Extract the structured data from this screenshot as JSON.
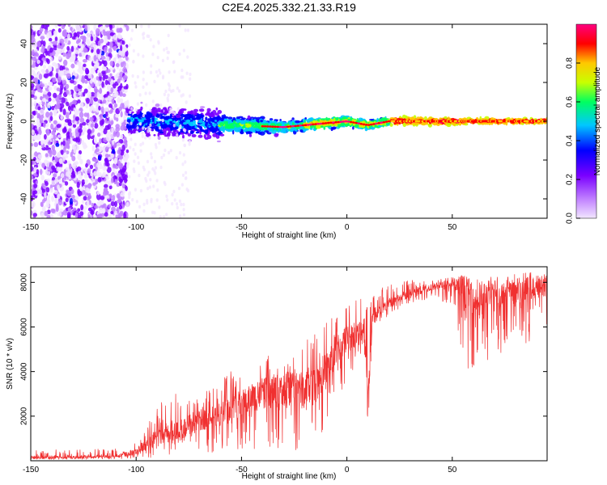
{
  "title": "C2E4.2025.332.21.33.R19",
  "chart_data": [
    {
      "type": "heatmap",
      "title": "C2E4.2025.332.21.33.R19",
      "xlabel": "Height of straight line (km)",
      "ylabel": "Frequency (Hz)",
      "xlim": [
        -150,
        95
      ],
      "ylim": [
        -50,
        50
      ],
      "xticks": [
        -150,
        -100,
        -50,
        0,
        50
      ],
      "yticks": [
        -40,
        -20,
        0,
        20,
        40
      ],
      "colorbar": {
        "label": "Normalized spectral amplitude",
        "range": [
          0,
          1
        ],
        "ticks": [
          "0.0",
          "0.2",
          "0.4",
          "0.6",
          "0.8"
        ],
        "colors": [
          "#f2e6ff",
          "#c080ff",
          "#7a00ff",
          "#0000ff",
          "#00c8ff",
          "#00ff60",
          "#c8ff00",
          "#ffc800",
          "#ff0000",
          "#ff0080"
        ]
      },
      "regions": [
        {
          "x": [
            -150,
            -104
          ],
          "freq_spread": [
            -50,
            50
          ],
          "amplitude": [
            0.05,
            0.3
          ]
        },
        {
          "x": [
            -104,
            -60
          ],
          "freq_spread": [
            -10,
            10
          ],
          "amplitude": [
            0.1,
            0.5
          ]
        },
        {
          "x": [
            -60,
            -20
          ],
          "freq_spread": [
            -6,
            6
          ],
          "amplitude": [
            0.2,
            0.7
          ]
        },
        {
          "x": [
            -20,
            20
          ],
          "freq_spread": [
            -4,
            4
          ],
          "amplitude": [
            0.3,
            0.9
          ]
        },
        {
          "x": [
            20,
            95
          ],
          "freq_spread": [
            -3,
            3
          ],
          "amplitude": [
            0.6,
            1.0
          ]
        }
      ],
      "ridge_freq": [
        {
          "x": -100,
          "y": 0
        },
        {
          "x": -30,
          "y": -3
        },
        {
          "x": -10,
          "y": -1
        },
        {
          "x": 0,
          "y": 0
        },
        {
          "x": 10,
          "y": -2
        },
        {
          "x": 20,
          "y": 0
        },
        {
          "x": 95,
          "y": 0
        }
      ]
    },
    {
      "type": "line",
      "xlabel": "Height of straight line (km)",
      "ylabel": "SNR (10 * v/v)",
      "xlim": [
        -150,
        95
      ],
      "ylim": [
        0,
        8700
      ],
      "xticks": [
        -150,
        -100,
        -50,
        0,
        50
      ],
      "yticks": [
        2000,
        4000,
        6000,
        8000
      ],
      "series": [
        {
          "name": "SNR",
          "color": "#f03030",
          "envelope_x": [
            -150,
            -110,
            -105,
            -100,
            -95,
            -90,
            -80,
            -75,
            -70,
            -60,
            -55,
            -50,
            -45,
            -40,
            -35,
            -30,
            -25,
            -20,
            -15,
            -10,
            -5,
            0,
            5,
            8,
            10,
            12,
            15,
            20,
            30,
            40,
            50,
            55,
            60,
            70,
            80,
            90,
            95
          ],
          "envelope_mean": [
            150,
            180,
            300,
            400,
            800,
            1000,
            1300,
            1500,
            1800,
            2100,
            2300,
            2600,
            2800,
            3000,
            3100,
            3200,
            3300,
            3100,
            3500,
            4000,
            5000,
            5400,
            5700,
            6000,
            3000,
            6300,
            6600,
            7100,
            7500,
            7800,
            7900,
            7700,
            7300,
            7500,
            7600,
            7800,
            7900
          ],
          "envelope_peak": [
            500,
            550,
            700,
            1000,
            1600,
            2500,
            3100,
            2800,
            3000,
            3500,
            4200,
            3800,
            4200,
            4400,
            5000,
            4700,
            4800,
            5600,
            6300,
            6300,
            6500,
            7000,
            7400,
            8300,
            7000,
            7500,
            7700,
            8000,
            8100,
            8200,
            8300,
            8200,
            8300,
            8300,
            8400,
            8500,
            8600
          ],
          "envelope_trough": [
            50,
            60,
            80,
            100,
            120,
            150,
            200,
            300,
            300,
            400,
            400,
            500,
            500,
            500,
            600,
            300,
            300,
            700,
            900,
            1500,
            2500,
            3500,
            4500,
            5000,
            1200,
            5500,
            6000,
            6500,
            7000,
            7300,
            7000,
            4000,
            4200,
            4500,
            5000,
            5500,
            6000
          ]
        }
      ]
    }
  ]
}
